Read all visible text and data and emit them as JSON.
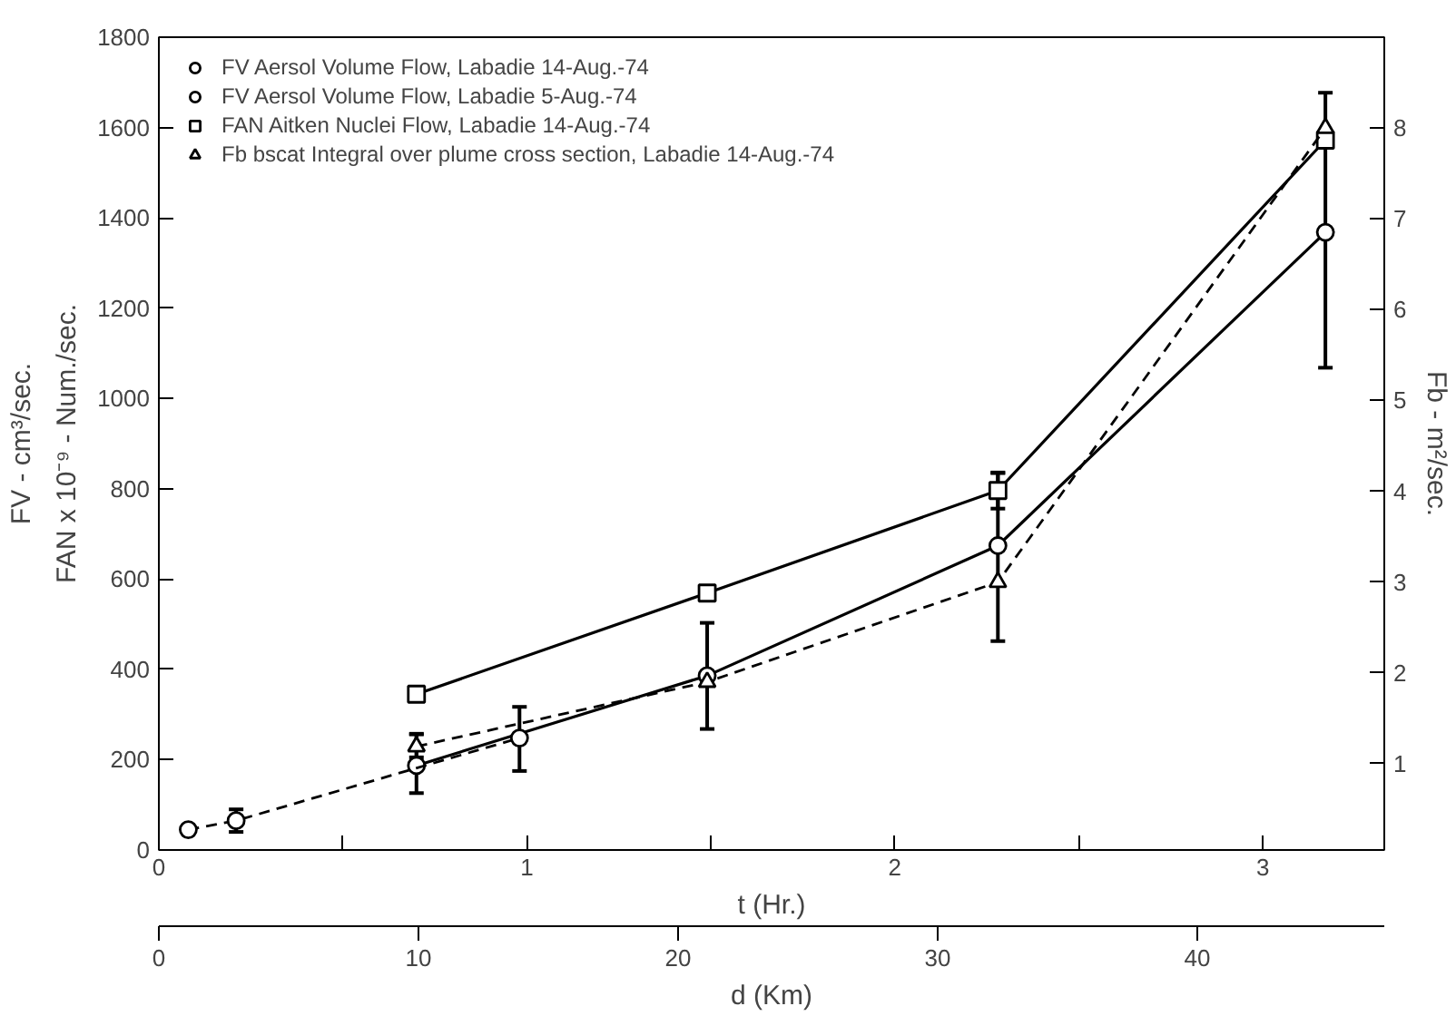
{
  "chart_data": {
    "type": "line",
    "xlabel": "t (Hr.)",
    "x2label": "d (Km)",
    "ylabel": [
      "FV - cm³/sec.",
      "FAN x 10⁻⁹ - Num./sec."
    ],
    "y2label": "Fb - m²/sec.",
    "xlim": [
      0,
      3.33
    ],
    "xticks": [
      0,
      {
        "value": 0.5,
        "label": null
      },
      1,
      {
        "value": 1.5,
        "label": null
      },
      2,
      {
        "value": 2.5,
        "label": null
      },
      3
    ],
    "x2lim": [
      0,
      47.2
    ],
    "x2ticks": [
      0,
      10,
      20,
      30,
      40
    ],
    "ylim": [
      0,
      1800
    ],
    "yticks": [
      0,
      200,
      400,
      600,
      800,
      1000,
      1200,
      1400,
      1600,
      1800
    ],
    "y2lim": [
      0.05,
      9.0
    ],
    "y2ticks": [
      1,
      2,
      3,
      4,
      5,
      6,
      7,
      8
    ],
    "legend": "top left",
    "grid": false,
    "series": [
      {
        "name": "FV Aersol Volume Flow, Labadie 14-Aug.-74",
        "color": "#000000",
        "marker": "circle",
        "line_style": "solid",
        "x": [
          0.7,
          1.49,
          2.28,
          3.17
        ],
        "values": [
          187,
          386,
          674,
          1368
        ],
        "errors": [
          [
            126,
            256
          ],
          [
            268,
            503
          ],
          null,
          [
            1068,
            1677
          ]
        ]
      },
      {
        "name": "FV Aersol Volume Flow, Labadie 5-Aug.-74",
        "color": "#000000",
        "marker": "circle",
        "line_style": "dashed",
        "x": [
          0.08,
          0.21,
          0.98
        ],
        "values": [
          45,
          65,
          248
        ],
        "errors": [
          null,
          25,
          [
            175,
            317
          ]
        ]
      },
      {
        "name": "FAN Aitken Nuclei Flow, Labadie 14-Aug.-74",
        "color": "#000000",
        "marker": "square",
        "line_style": "solid",
        "x": [
          0.7,
          1.49,
          2.28,
          3.17
        ],
        "values": [
          345,
          569,
          796,
          1572
        ],
        "errors": [
          null,
          null,
          40,
          null
        ]
      },
      {
        "name": "Fb bscat Integral over plume cross section, Labadie 14-Aug.-74",
        "color": "#000000",
        "marker": "triangle",
        "line_style": "dashed",
        "axis": "y2",
        "x": [
          0.7,
          1.49,
          2.28,
          3.17
        ],
        "values": [
          1.19,
          1.9,
          3.0,
          8.0
        ],
        "errors": [
          [
            1.07,
            1.33
          ],
          null,
          [
            2.35,
            4.2
          ],
          null
        ]
      }
    ]
  }
}
